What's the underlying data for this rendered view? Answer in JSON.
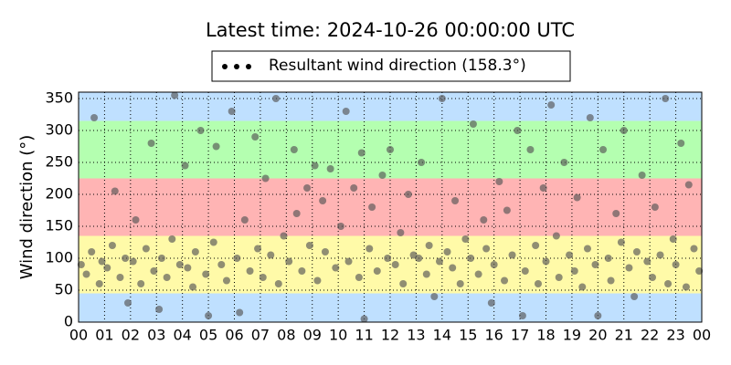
{
  "chart_data": {
    "type": "scatter",
    "title": "Latest time: 2024-10-26 00:00:00 UTC",
    "y_label": "Wind direction (°)",
    "xlim": [
      0,
      24
    ],
    "xticks": [
      {
        "value": 0,
        "label": "00"
      },
      {
        "value": 1,
        "label": "01"
      },
      {
        "value": 2,
        "label": "02"
      },
      {
        "value": 3,
        "label": "03"
      },
      {
        "value": 4,
        "label": "04"
      },
      {
        "value": 5,
        "label": "05"
      },
      {
        "value": 6,
        "label": "06"
      },
      {
        "value": 7,
        "label": "07"
      },
      {
        "value": 8,
        "label": "08"
      },
      {
        "value": 9,
        "label": "09"
      },
      {
        "value": 10,
        "label": "10"
      },
      {
        "value": 11,
        "label": "11"
      },
      {
        "value": 12,
        "label": "12"
      },
      {
        "value": 13,
        "label": "13"
      },
      {
        "value": 14,
        "label": "14"
      },
      {
        "value": 15,
        "label": "15"
      },
      {
        "value": 16,
        "label": "16"
      },
      {
        "value": 17,
        "label": "17"
      },
      {
        "value": 18,
        "label": "18"
      },
      {
        "value": 19,
        "label": "19"
      },
      {
        "value": 20,
        "label": "20"
      },
      {
        "value": 21,
        "label": "21"
      },
      {
        "value": 22,
        "label": "22"
      },
      {
        "value": 23,
        "label": "23"
      },
      {
        "value": 24,
        "label": "00"
      }
    ],
    "ylim": [
      0,
      360
    ],
    "yticks": [
      0,
      50,
      100,
      150,
      200,
      250,
      300,
      350
    ],
    "grid": true,
    "legend": "top",
    "bands": [
      {
        "from": 0,
        "to": 45,
        "color": "#bfe0ff"
      },
      {
        "from": 45,
        "to": 135,
        "color": "#fffaa8"
      },
      {
        "from": 135,
        "to": 225,
        "color": "#ffb4b4"
      },
      {
        "from": 225,
        "to": 315,
        "color": "#b4ffb0"
      },
      {
        "from": 315,
        "to": 360,
        "color": "#bfe0ff"
      }
    ],
    "x": [
      0.1,
      0.3,
      0.5,
      0.6,
      0.8,
      0.9,
      1.1,
      1.3,
      1.4,
      1.6,
      1.8,
      1.9,
      2.1,
      2.2,
      2.4,
      2.6,
      2.8,
      2.9,
      3.1,
      3.2,
      3.4,
      3.6,
      3.7,
      3.9,
      4.1,
      4.2,
      4.4,
      4.5,
      4.7,
      4.9,
      5.0,
      5.2,
      5.3,
      5.5,
      5.7,
      5.9,
      6.1,
      6.2,
      6.4,
      6.6,
      6.8,
      6.9,
      7.1,
      7.2,
      7.4,
      7.6,
      7.7,
      7.9,
      8.1,
      8.3,
      8.4,
      8.6,
      8.8,
      8.9,
      9.1,
      9.2,
      9.4,
      9.5,
      9.7,
      9.9,
      10.1,
      10.3,
      10.4,
      10.6,
      10.8,
      10.9,
      11.0,
      11.2,
      11.3,
      11.5,
      11.7,
      11.9,
      12.0,
      12.2,
      12.4,
      12.5,
      12.7,
      12.9,
      13.1,
      13.2,
      13.4,
      13.5,
      13.7,
      13.9,
      14.0,
      14.2,
      14.4,
      14.5,
      14.7,
      14.9,
      15.1,
      15.2,
      15.4,
      15.6,
      15.7,
      15.9,
      16.0,
      16.2,
      16.4,
      16.5,
      16.7,
      16.9,
      17.1,
      17.2,
      17.4,
      17.6,
      17.7,
      17.9,
      18.0,
      18.2,
      18.4,
      18.5,
      18.7,
      18.9,
      19.1,
      19.2,
      19.4,
      19.6,
      19.7,
      19.9,
      20.0,
      20.2,
      20.4,
      20.5,
      20.7,
      20.9,
      21.0,
      21.2,
      21.4,
      21.5,
      21.7,
      21.9,
      22.1,
      22.2,
      22.4,
      22.6,
      22.7,
      22.9,
      23.0,
      23.2,
      23.4,
      23.5,
      23.7,
      23.9
    ],
    "series": [
      {
        "name": "Resultant wind direction (158.3°)",
        "color": "#555555",
        "values": [
          90,
          75,
          110,
          320,
          60,
          95,
          85,
          120,
          205,
          70,
          100,
          30,
          95,
          160,
          60,
          115,
          280,
          80,
          20,
          100,
          70,
          130,
          355,
          90,
          245,
          85,
          55,
          110,
          300,
          75,
          10,
          125,
          275,
          90,
          65,
          330,
          100,
          15,
          160,
          80,
          290,
          115,
          70,
          225,
          105,
          350,
          60,
          135,
          95,
          270,
          170,
          80,
          210,
          120,
          245,
          65,
          190,
          110,
          240,
          85,
          150,
          330,
          95,
          210,
          70,
          265,
          5,
          115,
          180,
          80,
          230,
          100,
          270,
          90,
          140,
          60,
          200,
          105,
          100,
          250,
          75,
          120,
          40,
          95,
          350,
          110,
          85,
          190,
          60,
          130,
          100,
          310,
          75,
          160,
          115,
          30,
          90,
          220,
          65,
          175,
          105,
          300,
          10,
          80,
          270,
          120,
          60,
          210,
          95,
          340,
          135,
          70,
          250,
          105,
          80,
          195,
          55,
          115,
          320,
          90,
          10,
          270,
          100,
          65,
          170,
          125,
          300,
          85,
          40,
          110,
          230,
          95,
          70,
          180,
          105,
          350,
          60,
          130,
          90,
          280,
          55,
          215,
          115,
          80
        ]
      }
    ]
  }
}
